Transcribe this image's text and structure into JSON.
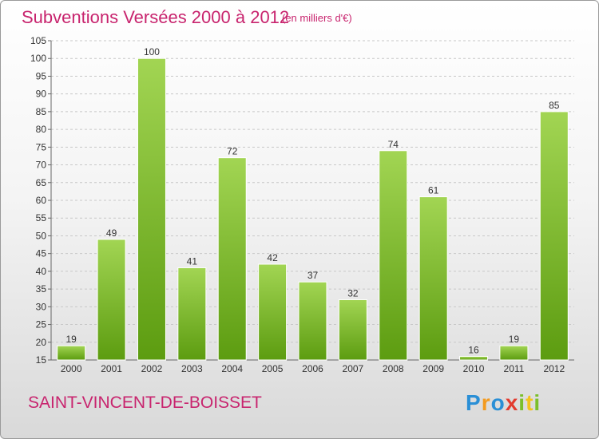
{
  "chart_data": {
    "type": "bar",
    "title": "Subventions Versées 2000 à 2012",
    "subtitle": "(en milliers d'€)",
    "categories": [
      "2000",
      "2001",
      "2002",
      "2003",
      "2004",
      "2005",
      "2006",
      "2007",
      "2008",
      "2009",
      "2010",
      "2011",
      "2012"
    ],
    "values": [
      19,
      49,
      100,
      41,
      72,
      42,
      37,
      32,
      74,
      61,
      16,
      19,
      85
    ],
    "ylim": [
      15,
      105
    ],
    "yticks": [
      15,
      20,
      25,
      30,
      35,
      40,
      45,
      50,
      55,
      60,
      65,
      70,
      75,
      80,
      85,
      90,
      95,
      100,
      105
    ],
    "grid": true,
    "bar_color": "#7bbf2a",
    "xlabel": "",
    "ylabel": ""
  },
  "footer": {
    "commune": "SAINT-VINCENT-DE-BOISSET",
    "logo": [
      "P",
      "r",
      "o",
      "x",
      "i",
      "t",
      "i"
    ]
  },
  "colors": {
    "title": "#c8246e",
    "bar_top": "#9ed24f",
    "bar_bottom": "#5e9e12"
  }
}
